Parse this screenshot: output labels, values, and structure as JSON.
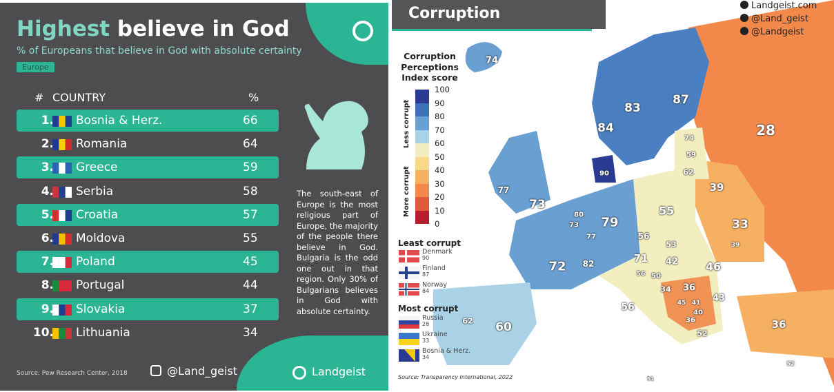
{
  "left": {
    "title_highlight": "Highest",
    "title_rest": " believe in God",
    "subtitle": "% of Europeans that believe in God with absolute certainty",
    "tag": "Europe",
    "col_rank": "#",
    "col_country": "COUNTRY",
    "col_pct": "%",
    "rows": [
      {
        "rank": "1.",
        "country": "Bosnia & Herz.",
        "pct": "66",
        "flag": [
          "#1e3e94",
          "#f5c800",
          "#1e3e94"
        ]
      },
      {
        "rank": "2.",
        "country": "Romania",
        "pct": "64",
        "flag": [
          "#1f3a93",
          "#f6d000",
          "#d02a2a"
        ]
      },
      {
        "rank": "3.",
        "country": "Greece",
        "pct": "59",
        "flag": [
          "#2b63b5",
          "#ffffff",
          "#2b63b5"
        ]
      },
      {
        "rank": "4.",
        "country": "Serbia",
        "pct": "58",
        "flag": [
          "#c8363a",
          "#24418f",
          "#ffffff"
        ]
      },
      {
        "rank": "5.",
        "country": "Croatia",
        "pct": "57",
        "flag": [
          "#d32f2f",
          "#ffffff",
          "#1f3c8f"
        ]
      },
      {
        "rank": "6.",
        "country": "Moldova",
        "pct": "55",
        "flag": [
          "#1f3c8f",
          "#f0c000",
          "#d32f2f"
        ]
      },
      {
        "rank": "7.",
        "country": "Poland",
        "pct": "45",
        "flag": [
          "#ffffff",
          "#ffffff",
          "#d8283c"
        ]
      },
      {
        "rank": "8.",
        "country": "Portugal",
        "pct": "44",
        "flag": [
          "#1a8a3a",
          "#d8283c",
          "#d8283c"
        ]
      },
      {
        "rank": "9.",
        "country": "Slovakia",
        "pct": "37",
        "flag": [
          "#ffffff",
          "#1f3c8f",
          "#d8283c"
        ]
      },
      {
        "rank": "10.",
        "country": "Lithuania",
        "pct": "34",
        "flag": [
          "#f2c200",
          "#1a8a3a",
          "#c8363a"
        ]
      }
    ],
    "description": "The south-east of Europe is the most religious part of Europe, the majority of the people there believe in God. Bulgaria is the odd one out in that region. Only 30% of Bulgarians believes in God with absolute certainty.",
    "source": "Source: Pew Research Center, 2018",
    "instagram": "@Land_geist",
    "brand": "Landgeist",
    "icons": [
      "globe-icon",
      "instagram-icon",
      "praying-person-icon"
    ]
  },
  "right": {
    "title": "Corruption",
    "social": [
      "Landgeist.com",
      "@Land_geist",
      "@Landgeist"
    ],
    "legend_title": "Corruption Perceptions Index score",
    "less_label": "Less corrupt",
    "more_label": "More corrupt",
    "ticks": [
      "100",
      "90",
      "80",
      "70",
      "60",
      "50",
      "40",
      "30",
      "20",
      "10",
      "0"
    ],
    "scale_colors": [
      "#2b3a93",
      "#3f70b8",
      "#6a9fd2",
      "#a9d2e6",
      "#f3eec0",
      "#f8d98a",
      "#f6b062",
      "#f2884a",
      "#e05a3a",
      "#b81e2e"
    ],
    "least_title": "Least corrupt",
    "least": [
      {
        "name": "Denmark",
        "score": "90"
      },
      {
        "name": "Finland",
        "score": "87"
      },
      {
        "name": "Norway",
        "score": "84"
      }
    ],
    "most_title": "Most corrupt",
    "most": [
      {
        "name": "Russia",
        "score": "28"
      },
      {
        "name": "Ukraine",
        "score": "33"
      },
      {
        "name": "Bosnia & Herz.",
        "score": "34"
      }
    ],
    "source": "Source: Transparency International, 2022",
    "map_values": [
      "74",
      "83",
      "87",
      "84",
      "28",
      "74",
      "59",
      "62",
      "90",
      "77",
      "73",
      "39",
      "80",
      "79",
      "55",
      "73",
      "33",
      "77",
      "56",
      "53",
      "39",
      "72",
      "82",
      "71",
      "42",
      "46",
      "56",
      "50",
      "36",
      "34",
      "43",
      "45",
      "41",
      "40",
      "36",
      "56",
      "62",
      "60",
      "52",
      "36",
      "52",
      "51"
    ]
  }
}
